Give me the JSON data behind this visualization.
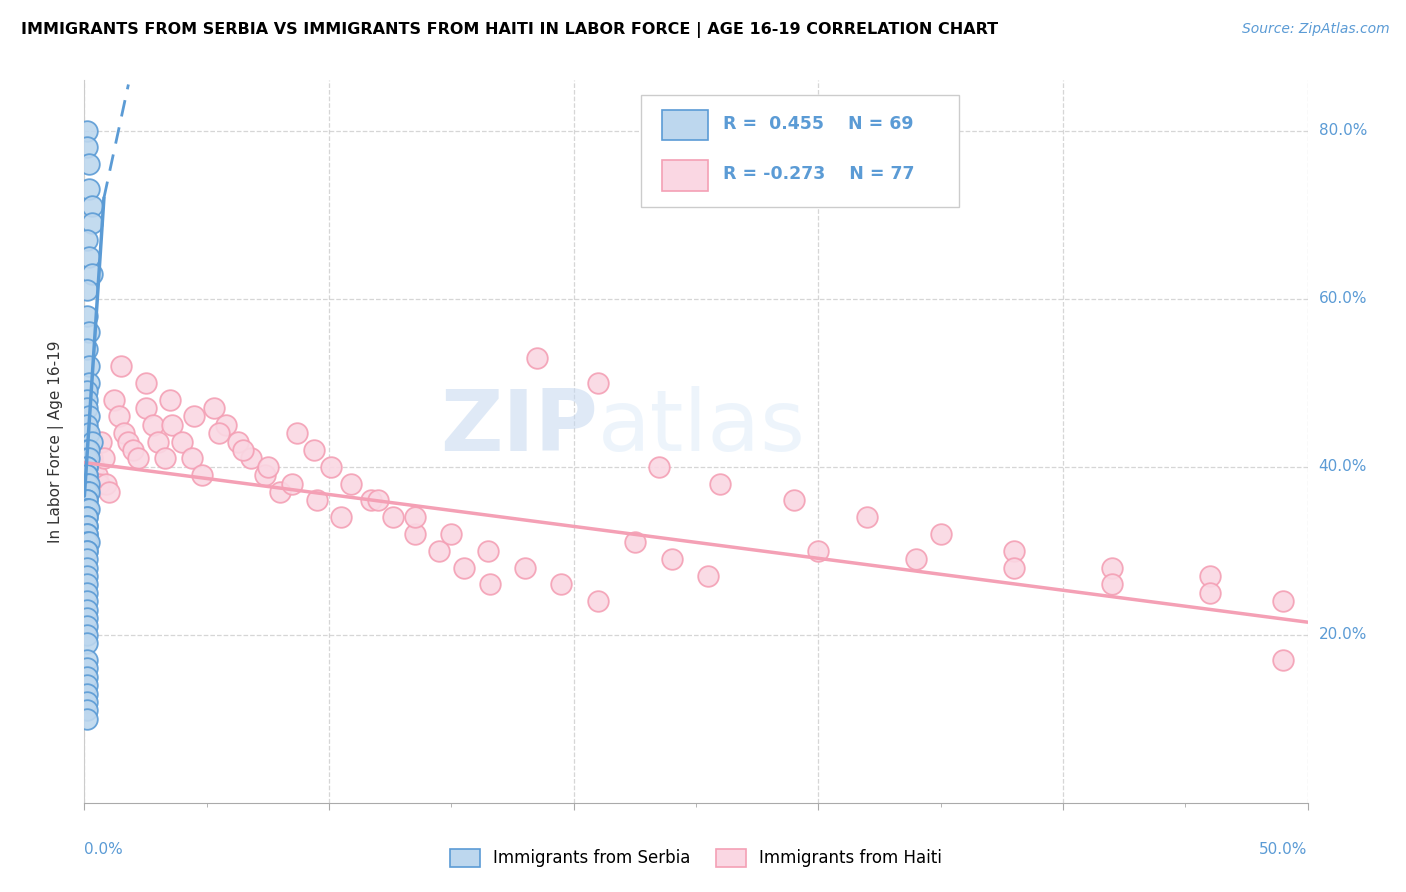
{
  "title": "IMMIGRANTS FROM SERBIA VS IMMIGRANTS FROM HAITI IN LABOR FORCE | AGE 16-19 CORRELATION CHART",
  "source": "Source: ZipAtlas.com",
  "ylabel": "In Labor Force | Age 16-19",
  "serbia_color": "#5b9bd5",
  "serbia_color_fill": "#bdd7ee",
  "haiti_color": "#f4a0b5",
  "haiti_color_fill": "#fad7e3",
  "serbia_R": 0.455,
  "serbia_N": 69,
  "haiti_R": -0.273,
  "haiti_N": 77,
  "watermark_zip": "ZIP",
  "watermark_atlas": "atlas",
  "legend_label_serbia": "Immigrants from Serbia",
  "legend_label_haiti": "Immigrants from Haiti",
  "xlim": [
    0.0,
    0.5
  ],
  "ylim": [
    0.0,
    0.86
  ],
  "right_ytick_labels": [
    "20.0%",
    "40.0%",
    "60.0%",
    "80.0%"
  ],
  "right_ytick_vals": [
    0.2,
    0.4,
    0.6,
    0.8
  ],
  "serbia_x": [
    0.001,
    0.001,
    0.002,
    0.002,
    0.003,
    0.003,
    0.001,
    0.002,
    0.003,
    0.001,
    0.001,
    0.002,
    0.001,
    0.002,
    0.002,
    0.001,
    0.001,
    0.001,
    0.002,
    0.001,
    0.002,
    0.003,
    0.001,
    0.002,
    0.001,
    0.002,
    0.001,
    0.001,
    0.001,
    0.001,
    0.001,
    0.002,
    0.001,
    0.001,
    0.002,
    0.001,
    0.001,
    0.001,
    0.001,
    0.002,
    0.001,
    0.001,
    0.001,
    0.001,
    0.001,
    0.001,
    0.001,
    0.002,
    0.001,
    0.001,
    0.001,
    0.001,
    0.001,
    0.001,
    0.001,
    0.001,
    0.001,
    0.001,
    0.001,
    0.001,
    0.001,
    0.001,
    0.001,
    0.001,
    0.001,
    0.001,
    0.001,
    0.001,
    0.001
  ],
  "serbia_y": [
    0.8,
    0.78,
    0.76,
    0.73,
    0.71,
    0.69,
    0.67,
    0.65,
    0.63,
    0.61,
    0.58,
    0.56,
    0.54,
    0.52,
    0.5,
    0.49,
    0.48,
    0.47,
    0.46,
    0.45,
    0.44,
    0.43,
    0.42,
    0.42,
    0.41,
    0.41,
    0.4,
    0.4,
    0.39,
    0.39,
    0.38,
    0.38,
    0.37,
    0.37,
    0.37,
    0.36,
    0.36,
    0.35,
    0.35,
    0.35,
    0.34,
    0.34,
    0.33,
    0.33,
    0.32,
    0.32,
    0.31,
    0.31,
    0.3,
    0.3,
    0.29,
    0.28,
    0.27,
    0.26,
    0.25,
    0.24,
    0.23,
    0.22,
    0.21,
    0.2,
    0.19,
    0.17,
    0.16,
    0.15,
    0.14,
    0.13,
    0.12,
    0.11,
    0.1
  ],
  "haiti_x": [
    0.001,
    0.002,
    0.003,
    0.004,
    0.005,
    0.006,
    0.007,
    0.008,
    0.009,
    0.01,
    0.012,
    0.014,
    0.016,
    0.018,
    0.02,
    0.022,
    0.025,
    0.028,
    0.03,
    0.033,
    0.036,
    0.04,
    0.044,
    0.048,
    0.053,
    0.058,
    0.063,
    0.068,
    0.074,
    0.08,
    0.087,
    0.094,
    0.101,
    0.109,
    0.117,
    0.126,
    0.135,
    0.145,
    0.155,
    0.166,
    0.015,
    0.025,
    0.035,
    0.045,
    0.055,
    0.065,
    0.075,
    0.085,
    0.095,
    0.105,
    0.12,
    0.135,
    0.15,
    0.165,
    0.18,
    0.195,
    0.21,
    0.225,
    0.24,
    0.255,
    0.185,
    0.21,
    0.235,
    0.26,
    0.29,
    0.32,
    0.35,
    0.38,
    0.42,
    0.46,
    0.3,
    0.34,
    0.38,
    0.42,
    0.46,
    0.49,
    0.49
  ],
  "haiti_y": [
    0.44,
    0.42,
    0.41,
    0.4,
    0.39,
    0.38,
    0.43,
    0.41,
    0.38,
    0.37,
    0.48,
    0.46,
    0.44,
    0.43,
    0.42,
    0.41,
    0.47,
    0.45,
    0.43,
    0.41,
    0.45,
    0.43,
    0.41,
    0.39,
    0.47,
    0.45,
    0.43,
    0.41,
    0.39,
    0.37,
    0.44,
    0.42,
    0.4,
    0.38,
    0.36,
    0.34,
    0.32,
    0.3,
    0.28,
    0.26,
    0.52,
    0.5,
    0.48,
    0.46,
    0.44,
    0.42,
    0.4,
    0.38,
    0.36,
    0.34,
    0.36,
    0.34,
    0.32,
    0.3,
    0.28,
    0.26,
    0.24,
    0.31,
    0.29,
    0.27,
    0.53,
    0.5,
    0.4,
    0.38,
    0.36,
    0.34,
    0.32,
    0.3,
    0.28,
    0.27,
    0.3,
    0.29,
    0.28,
    0.26,
    0.25,
    0.24,
    0.17
  ],
  "haiti_line_x0": 0.0,
  "haiti_line_x1": 0.5,
  "haiti_line_y0": 0.405,
  "haiti_line_y1": 0.215,
  "serbia_line_solid_x0": 0.0,
  "serbia_line_solid_x1": 0.008,
  "serbia_line_solid_y0": 0.365,
  "serbia_line_solid_y1": 0.72,
  "serbia_line_dash_x0": 0.008,
  "serbia_line_dash_x1": 0.018,
  "serbia_line_dash_y0": 0.72,
  "serbia_line_dash_y1": 0.855
}
